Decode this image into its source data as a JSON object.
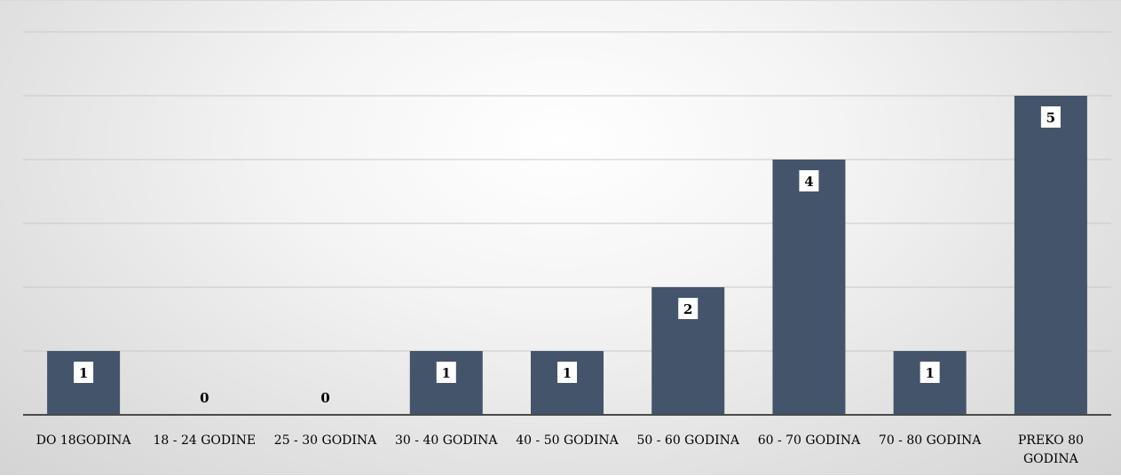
{
  "chart_data": {
    "type": "bar",
    "categories": [
      "DO 18GODINA",
      "18 - 24 GODINE",
      "25 - 30 GODINA",
      "30 - 40 GODINA",
      "40 - 50 GODINA",
      "50 - 60 GODINA",
      "60 - 70 GODINA",
      "70 - 80 GODINA",
      "PREKO 80 GODINA"
    ],
    "values": [
      1,
      0,
      0,
      1,
      1,
      2,
      4,
      1,
      5
    ],
    "title": "",
    "xlabel": "",
    "ylabel": "",
    "ylim": [
      0,
      6
    ],
    "grid": true,
    "legend": "none",
    "data_labels": true,
    "colors": {
      "bar": "#44546a",
      "grid": "#c8c8c8",
      "axis": "#4a4a4a",
      "label_box": "#ffffff"
    }
  }
}
